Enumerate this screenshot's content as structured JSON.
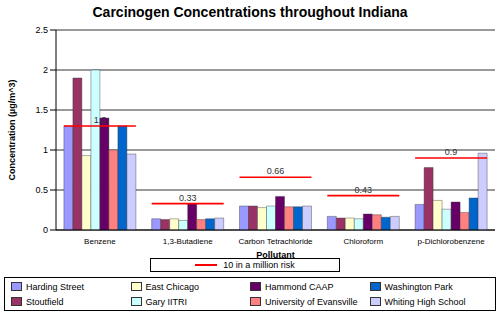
{
  "chart_data": {
    "type": "bar",
    "title": "Carcinogen Concentrations throughout Indiana",
    "x_label": "Pollutant",
    "y_label": "Concentration (µg/m^3)",
    "categories": [
      "Benzene",
      "1,3-Butadiene",
      "Carbon Tetrachloride",
      "Chloroform",
      "p-Dichlorobenzene"
    ],
    "ylim": [
      0,
      2.5
    ],
    "yticks": [
      0,
      0.5,
      1,
      1.5,
      2,
      2.5
    ],
    "grid": true,
    "legend": "bottom",
    "series": [
      {
        "name": "Harding Street",
        "color": "#9999ff",
        "values": [
          1.3,
          0.14,
          0.3,
          0.17,
          0.32
        ]
      },
      {
        "name": "Stoutfield",
        "color": "#993366",
        "values": [
          1.9,
          0.13,
          0.3,
          0.15,
          0.78
        ]
      },
      {
        "name": "East Chicago",
        "color": "#ffffcc",
        "values": [
          0.93,
          0.14,
          0.28,
          0.15,
          0.37
        ]
      },
      {
        "name": "Gary IITRI",
        "color": "#ccffff",
        "values": [
          2.0,
          0.12,
          0.3,
          0.14,
          0.26
        ]
      },
      {
        "name": "Hammond CAAP",
        "color": "#660066",
        "values": [
          1.4,
          0.33,
          0.42,
          0.2,
          0.35
        ]
      },
      {
        "name": "University of Evansville",
        "color": "#ff8080",
        "values": [
          1.0,
          0.13,
          0.29,
          0.19,
          0.22
        ]
      },
      {
        "name": "Washington Park",
        "color": "#0066cc",
        "values": [
          1.3,
          0.14,
          0.29,
          0.16,
          0.4
        ]
      },
      {
        "name": "Whiting High School",
        "color": "#ccccff",
        "values": [
          0.95,
          0.15,
          0.3,
          0.17,
          0.96
        ]
      },
      {
        "name": "10 in a million risk",
        "type": "line",
        "color": "#ff0000",
        "data_labels": true,
        "values": [
          1.3,
          0.33,
          0.66,
          0.43,
          0.9
        ]
      }
    ]
  }
}
